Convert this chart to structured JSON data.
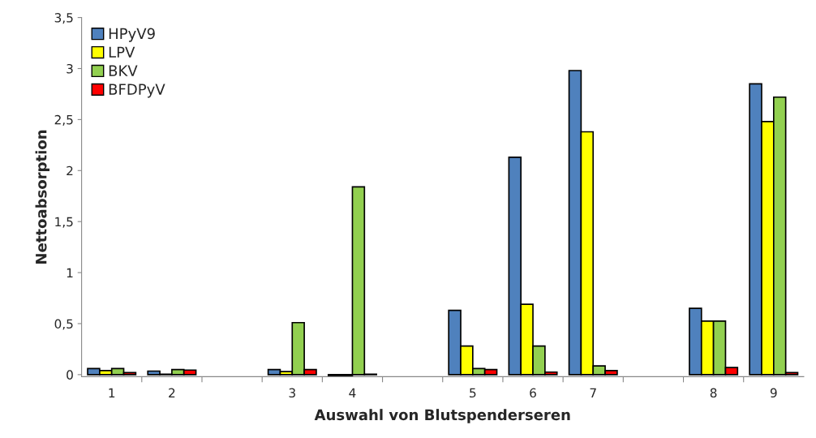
{
  "chart_data": {
    "type": "bar",
    "xlabel": "Auswahl von Blutspenderseren",
    "ylabel": "Nettoabsorption",
    "categories": [
      "1",
      "2",
      null,
      "3",
      "4",
      null,
      "5",
      "6",
      "7",
      null,
      "8",
      "9"
    ],
    "series": [
      {
        "name": "HPyV9",
        "color": "#4f81bd",
        "values": [
          0.06,
          0.035,
          null,
          0.05,
          -0.01,
          null,
          0.63,
          2.13,
          2.98,
          null,
          0.65,
          2.85
        ]
      },
      {
        "name": "LPV",
        "color": "#ffff00",
        "values": [
          0.04,
          0.005,
          null,
          0.03,
          -0.01,
          null,
          0.28,
          0.69,
          2.38,
          null,
          0.525,
          2.48
        ]
      },
      {
        "name": "BKV",
        "color": "#92d050",
        "values": [
          0.06,
          0.05,
          null,
          0.51,
          1.84,
          null,
          0.06,
          0.28,
          0.085,
          null,
          0.525,
          2.72
        ]
      },
      {
        "name": "BFDPyV",
        "color": "#ff0000",
        "values": [
          0.02,
          0.045,
          null,
          0.05,
          0.005,
          null,
          0.05,
          0.025,
          0.04,
          null,
          0.07,
          0.02
        ]
      }
    ],
    "ylim": [
      -0.02,
      3.5
    ],
    "yticks": [
      {
        "value": 0,
        "label": "0"
      },
      {
        "value": 0.5,
        "label": "0,5"
      },
      {
        "value": 1,
        "label": "1"
      },
      {
        "value": 1.5,
        "label": "1,5"
      },
      {
        "value": 2,
        "label": "2"
      },
      {
        "value": 2.5,
        "label": "2,5"
      },
      {
        "value": 3,
        "label": "3"
      },
      {
        "value": 3.5,
        "label": "3,5"
      }
    ],
    "grid": false,
    "legend": "top left"
  }
}
